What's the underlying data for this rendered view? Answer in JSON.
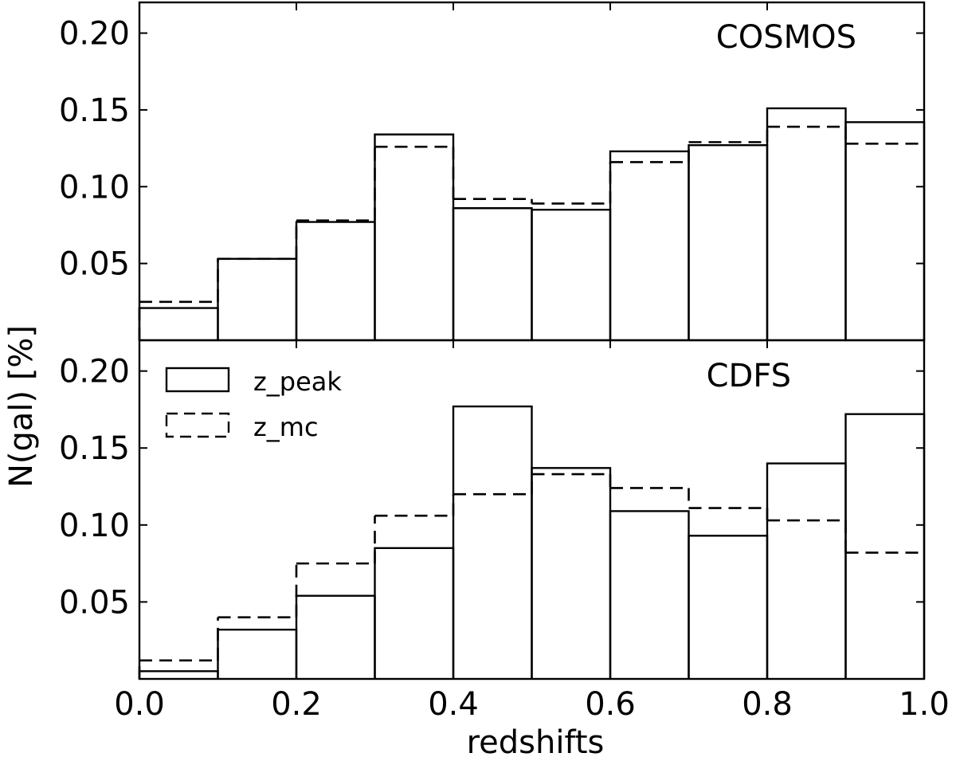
{
  "chart_data": {
    "type": "histogram",
    "xlabel": "redshifts",
    "ylabel": "N(gal) [%]",
    "xlim": [
      0.0,
      1.0
    ],
    "x_ticks": [
      "0.0",
      "0.2",
      "0.4",
      "0.6",
      "0.8",
      "1.0"
    ],
    "bin_edges": [
      0.0,
      0.1,
      0.2,
      0.3,
      0.4,
      0.5,
      0.6,
      0.7,
      0.8,
      0.9,
      1.0
    ],
    "legend": {
      "placement": "upper-left of lower panel",
      "entries": [
        {
          "label": "z_peak",
          "style": "solid"
        },
        {
          "label": "z_mc",
          "style": "dashed"
        }
      ]
    },
    "panels": [
      {
        "title": "COSMOS",
        "ylim": [
          0.0,
          0.22
        ],
        "y_ticks": [
          "0.05",
          "0.10",
          "0.15",
          "0.20"
        ],
        "series": [
          {
            "name": "z_peak",
            "style": "solid",
            "values": [
              0.021,
              0.053,
              0.077,
              0.134,
              0.086,
              0.085,
              0.123,
              0.127,
              0.151,
              0.142
            ]
          },
          {
            "name": "z_mc",
            "style": "dashed",
            "values": [
              0.025,
              0.053,
              0.078,
              0.126,
              0.092,
              0.089,
              0.116,
              0.129,
              0.139,
              0.128
            ]
          }
        ]
      },
      {
        "title": "CDFS",
        "ylim": [
          0.0,
          0.22
        ],
        "y_ticks": [
          "0.05",
          "0.10",
          "0.15",
          "0.20"
        ],
        "series": [
          {
            "name": "z_peak",
            "style": "solid",
            "values": [
              0.005,
              0.032,
              0.054,
              0.085,
              0.177,
              0.137,
              0.109,
              0.093,
              0.14,
              0.172
            ]
          },
          {
            "name": "z_mc",
            "style": "dashed",
            "values": [
              0.012,
              0.04,
              0.075,
              0.106,
              0.12,
              0.133,
              0.124,
              0.111,
              0.103,
              0.082
            ]
          }
        ]
      }
    ]
  }
}
